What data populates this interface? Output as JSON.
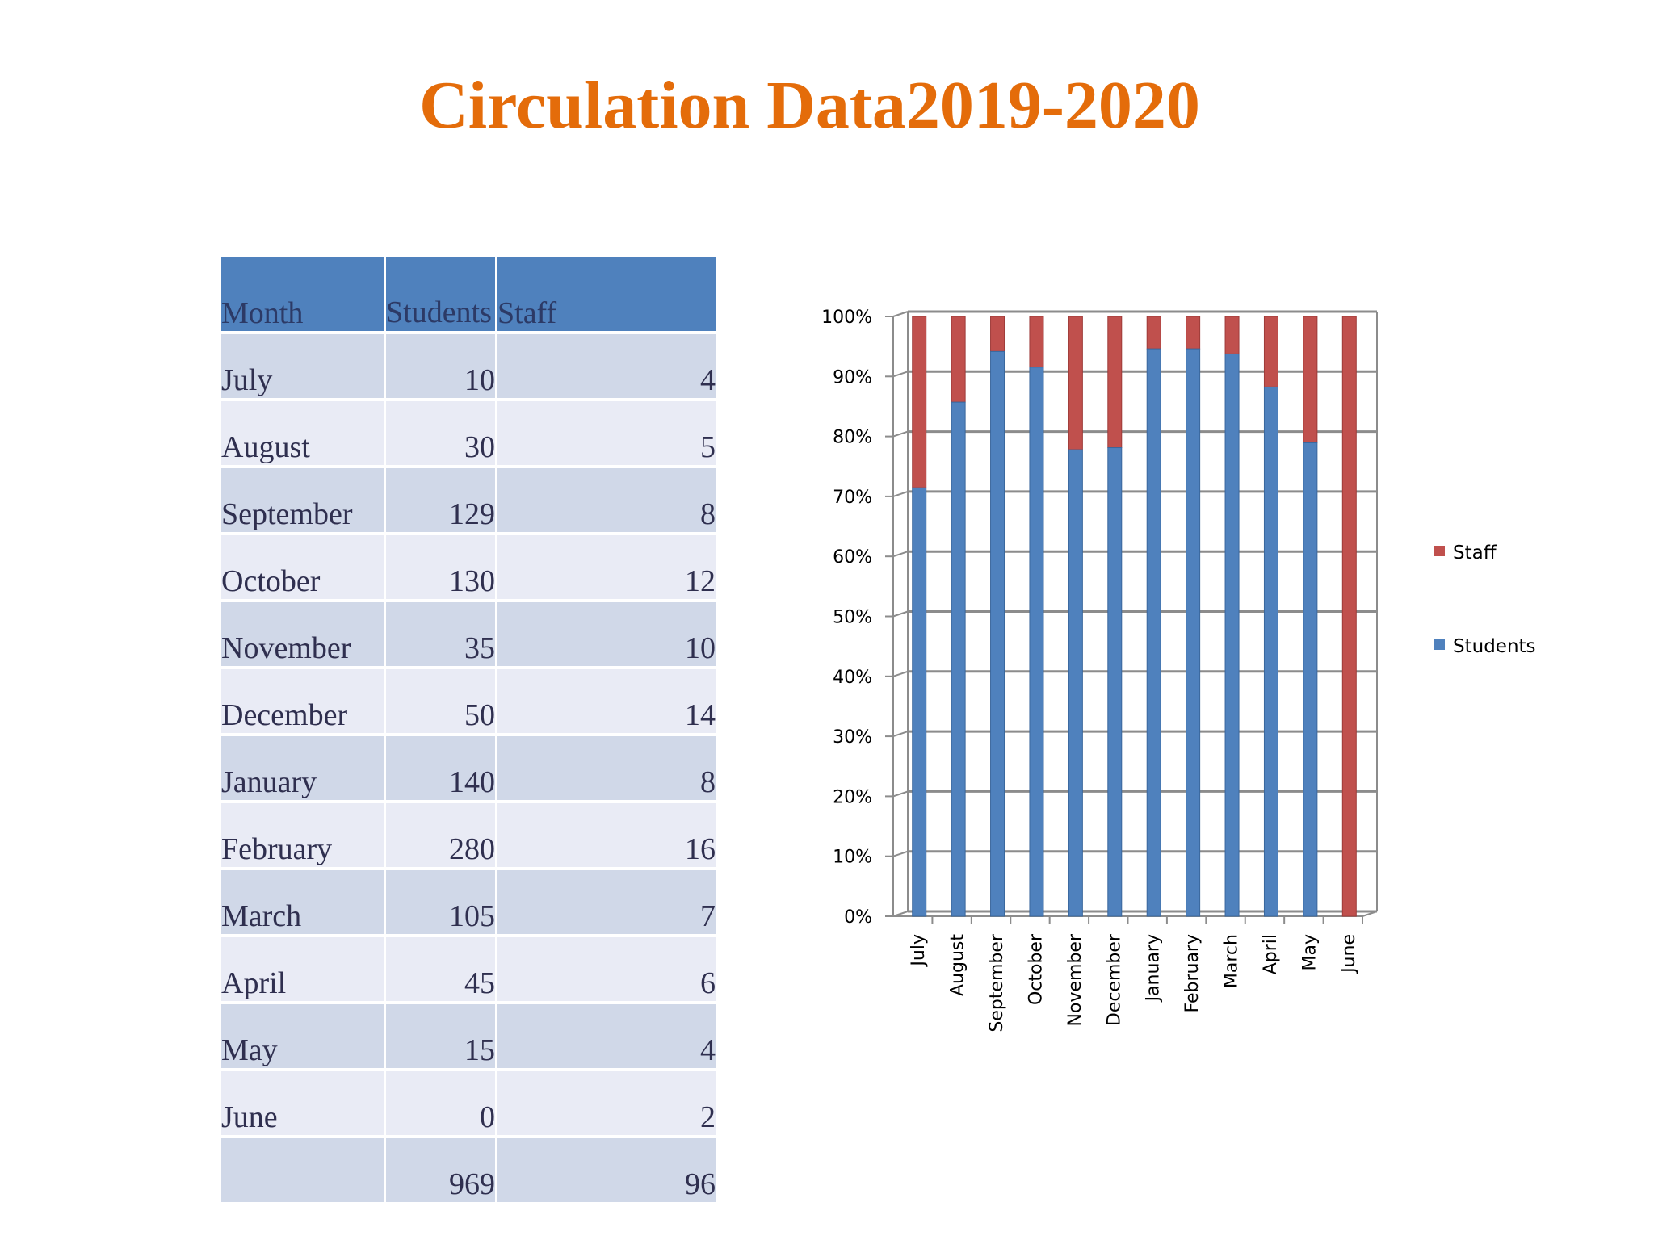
{
  "title": "Circulation Data2019-2020",
  "table": {
    "headers": {
      "month": "Month",
      "students": "Students",
      "staff": "Staff"
    },
    "rows": [
      {
        "month": "July",
        "students": "10",
        "staff": "4"
      },
      {
        "month": "August",
        "students": "30",
        "staff": "5"
      },
      {
        "month": "September",
        "students": "129",
        "staff": "8"
      },
      {
        "month": "October",
        "students": "130",
        "staff": "12"
      },
      {
        "month": "November",
        "students": "35",
        "staff": "10"
      },
      {
        "month": "December",
        "students": "50",
        "staff": "14"
      },
      {
        "month": "January",
        "students": "140",
        "staff": "8"
      },
      {
        "month": "February",
        "students": "280",
        "staff": "16"
      },
      {
        "month": "March",
        "students": "105",
        "staff": "7"
      },
      {
        "month": "April",
        "students": "45",
        "staff": "6"
      },
      {
        "month": "May",
        "students": "15",
        "staff": "4"
      },
      {
        "month": "June",
        "students": "0",
        "staff": "2"
      }
    ],
    "totals": {
      "label": "",
      "students": "969",
      "staff": "96"
    }
  },
  "chart_data": {
    "type": "bar",
    "stacking": "percent",
    "categories": [
      "July",
      "August",
      "September",
      "October",
      "November",
      "December",
      "January",
      "February",
      "March",
      "April",
      "May",
      "June"
    ],
    "series": [
      {
        "name": "Students",
        "values": [
          10,
          30,
          129,
          130,
          35,
          50,
          140,
          280,
          105,
          45,
          15,
          0
        ],
        "color": "#4f81bd"
      },
      {
        "name": "Staff",
        "values": [
          4,
          5,
          8,
          12,
          10,
          14,
          8,
          16,
          7,
          6,
          4,
          2
        ],
        "color": "#c0504d"
      }
    ],
    "yticks": [
      "0%",
      "10%",
      "20%",
      "30%",
      "40%",
      "50%",
      "60%",
      "70%",
      "80%",
      "90%",
      "100%"
    ],
    "ylim": [
      0,
      100
    ],
    "grid": true,
    "legend_position": "right",
    "legend_order": [
      "Staff",
      "Students"
    ]
  }
}
